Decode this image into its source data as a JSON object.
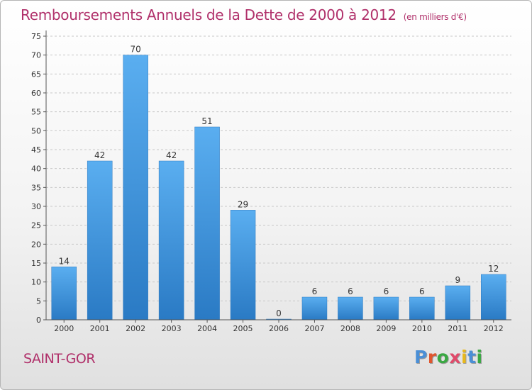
{
  "chart_data": {
    "type": "bar",
    "title": "Remboursements Annuels de la Dette de 2000 à 2012",
    "subtitle": "(en milliers d'€)",
    "categories": [
      "2000",
      "2001",
      "2002",
      "2003",
      "2004",
      "2005",
      "2006",
      "2007",
      "2008",
      "2009",
      "2010",
      "2011",
      "2012"
    ],
    "values": [
      14,
      42,
      70,
      42,
      51,
      29,
      0,
      6,
      6,
      6,
      6,
      9,
      12
    ],
    "ylim": [
      0,
      75
    ],
    "yticks": [
      0,
      5,
      10,
      15,
      20,
      25,
      30,
      35,
      40,
      45,
      50,
      55,
      60,
      65,
      70,
      75
    ],
    "grid": "horizontal-dashed",
    "xlabel": "",
    "ylabel": "",
    "bar_color": "#3a8fd8"
  },
  "footer": {
    "city": "SAINT-GOR",
    "logo_letters": [
      "P",
      "r",
      "o",
      "x",
      "i",
      "t",
      "i"
    ],
    "logo_colors": [
      "#4a8fd6",
      "#e0562e",
      "#3aa843",
      "#e04a6a",
      "#e8b81a",
      "#4a8fd6",
      "#3aa843"
    ]
  }
}
